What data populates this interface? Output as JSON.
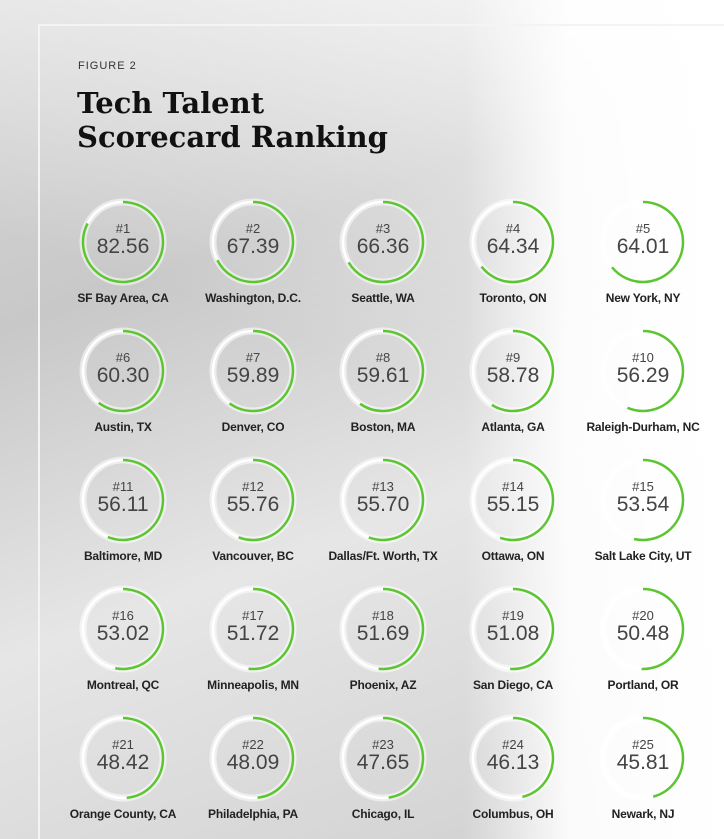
{
  "figure_label": "FIGURE 2",
  "title_line1": "Tech Talent",
  "title_line2": "Scorecard Ranking",
  "colors": {
    "accent": "#5cc531",
    "ring": "#ffffff",
    "text": "#444444"
  },
  "chart_data": {
    "type": "table",
    "title": "Tech Talent Scorecard Ranking",
    "max_score": 100,
    "rows": [
      {
        "rank": "#1",
        "score": "82.56",
        "city": "SF Bay Area, CA"
      },
      {
        "rank": "#2",
        "score": "67.39",
        "city": "Washington, D.C."
      },
      {
        "rank": "#3",
        "score": "66.36",
        "city": "Seattle, WA"
      },
      {
        "rank": "#4",
        "score": "64.34",
        "city": "Toronto, ON"
      },
      {
        "rank": "#5",
        "score": "64.01",
        "city": "New York, NY"
      },
      {
        "rank": "#6",
        "score": "60.30",
        "city": "Austin, TX"
      },
      {
        "rank": "#7",
        "score": "59.89",
        "city": "Denver, CO"
      },
      {
        "rank": "#8",
        "score": "59.61",
        "city": "Boston, MA"
      },
      {
        "rank": "#9",
        "score": "58.78",
        "city": "Atlanta, GA"
      },
      {
        "rank": "#10",
        "score": "56.29",
        "city": "Raleigh-Durham, NC"
      },
      {
        "rank": "#11",
        "score": "56.11",
        "city": "Baltimore, MD"
      },
      {
        "rank": "#12",
        "score": "55.76",
        "city": "Vancouver, BC"
      },
      {
        "rank": "#13",
        "score": "55.70",
        "city": "Dallas/Ft. Worth, TX"
      },
      {
        "rank": "#14",
        "score": "55.15",
        "city": "Ottawa, ON"
      },
      {
        "rank": "#15",
        "score": "53.54",
        "city": "Salt Lake City, UT"
      },
      {
        "rank": "#16",
        "score": "53.02",
        "city": "Montreal, QC"
      },
      {
        "rank": "#17",
        "score": "51.72",
        "city": "Minneapolis, MN"
      },
      {
        "rank": "#18",
        "score": "51.69",
        "city": "Phoenix, AZ"
      },
      {
        "rank": "#19",
        "score": "51.08",
        "city": "San Diego, CA"
      },
      {
        "rank": "#20",
        "score": "50.48",
        "city": "Portland, OR"
      },
      {
        "rank": "#21",
        "score": "48.42",
        "city": "Orange County, CA"
      },
      {
        "rank": "#22",
        "score": "48.09",
        "city": "Philadelphia, PA"
      },
      {
        "rank": "#23",
        "score": "47.65",
        "city": "Chicago, IL"
      },
      {
        "rank": "#24",
        "score": "46.13",
        "city": "Columbus, OH"
      },
      {
        "rank": "#25",
        "score": "45.81",
        "city": "Newark, NJ"
      }
    ]
  }
}
